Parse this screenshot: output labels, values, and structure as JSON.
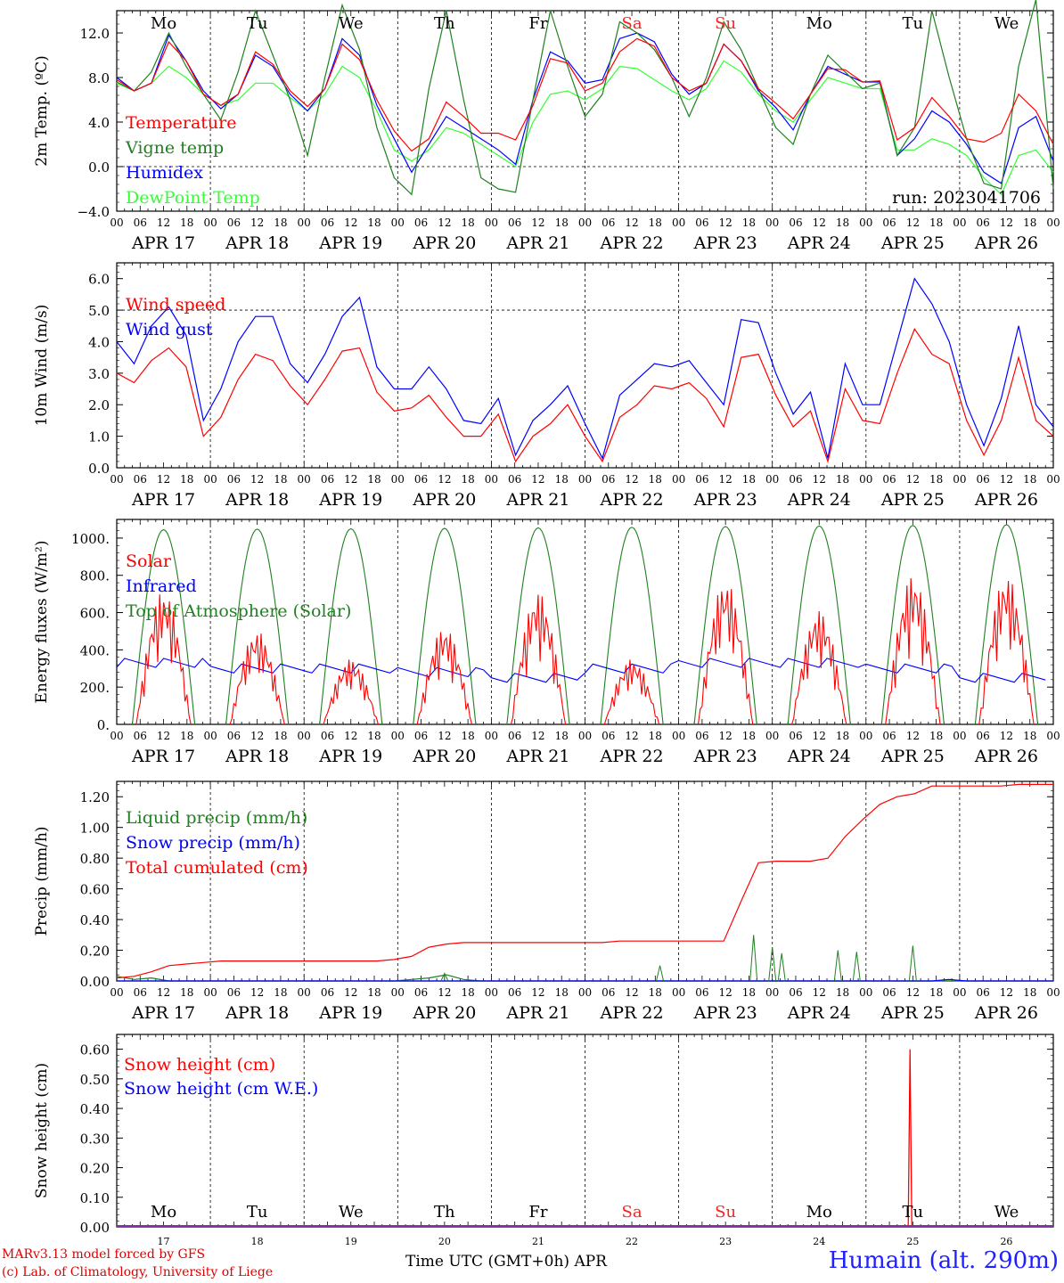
{
  "days": [
    "APR 17",
    "APR 18",
    "APR 19",
    "APR 20",
    "APR 21",
    "APR 22",
    "APR 23",
    "APR 24",
    "APR 25",
    "APR 26"
  ],
  "weekdays": [
    "Mo",
    "Tu",
    "We",
    "Th",
    "Fr",
    "Sa",
    "Su",
    "Mo",
    "Tu",
    "We"
  ],
  "weekend_color": "#ff2020",
  "hour_ticks": [
    "00",
    "06",
    "12",
    "18"
  ],
  "end_tick": "00",
  "snow_day_numbers": [
    "17",
    "18",
    "19",
    "20",
    "21",
    "22",
    "23",
    "24",
    "25",
    "26"
  ],
  "footer": {
    "model": "MARv3.13 model forced by GFS",
    "lab": "(c) Lab. of Climatology, University of Liege",
    "time_label": "Time UTC (GMT+0h) APR",
    "station": "Humain (alt. 290m)"
  },
  "chart_data": [
    {
      "id": "temp",
      "type": "line",
      "ylabel": "2m Temp. (ºC)",
      "ylim": [
        -4,
        14
      ],
      "yticks": [
        "−4.0",
        "0.0",
        "4.0",
        "8.0",
        "12.0"
      ],
      "ytick_values": [
        -4,
        0,
        4,
        8,
        12
      ],
      "dashed_hline": 0,
      "run_label": "run: 2023041706",
      "series": [
        {
          "name": "Temperature",
          "color": "#ff0000",
          "values": [
            7.8,
            6.8,
            7.5,
            11.2,
            9.5,
            6.5,
            5.5,
            6.5,
            10.3,
            9.2,
            6.8,
            5.4,
            7.0,
            11.0,
            9.6,
            6.0,
            3.2,
            1.4,
            2.5,
            5.8,
            4.5,
            3.0,
            3.0,
            2.4,
            5.5,
            9.7,
            9.3,
            6.8,
            7.5,
            10.3,
            11.5,
            10.8,
            8.0,
            6.8,
            7.5,
            11.0,
            9.5,
            7.0,
            5.7,
            4.3,
            6.5,
            8.8,
            8.7,
            7.6,
            7.7,
            2.4,
            3.5,
            6.2,
            4.5,
            2.5,
            2.2,
            3.0,
            6.5,
            5.0,
            2.0
          ]
        },
        {
          "name": "Vigne temp",
          "color": "#208020",
          "values": [
            7.6,
            6.8,
            8.5,
            12.0,
            9.0,
            6.5,
            4.2,
            8.5,
            14.0,
            10.0,
            6.0,
            1.0,
            8.0,
            14.5,
            10.5,
            3.5,
            -1.0,
            -2.5,
            7.0,
            14.0,
            6.0,
            -1.0,
            -2.0,
            -2.3,
            6.0,
            14.0,
            9.0,
            4.5,
            6.5,
            13.0,
            12.0,
            10.5,
            8.0,
            4.5,
            8.0,
            13.0,
            10.5,
            7.0,
            3.5,
            2.0,
            6.5,
            10.0,
            8.5,
            7.0,
            7.5,
            1.0,
            3.5,
            14.0,
            8.0,
            2.5,
            -1.5,
            -2.0,
            9.0,
            15.0,
            -2.0
          ]
        },
        {
          "name": "Humidex",
          "color": "#0000ff",
          "values": [
            8.0,
            6.8,
            7.5,
            11.8,
            9.5,
            6.8,
            5.2,
            6.5,
            10.0,
            9.0,
            6.5,
            5.0,
            7.0,
            11.5,
            10.0,
            5.5,
            2.5,
            -0.5,
            2.0,
            4.5,
            3.5,
            2.5,
            1.5,
            0.2,
            6.0,
            10.3,
            9.5,
            7.5,
            7.8,
            11.5,
            12.0,
            11.2,
            8.3,
            6.5,
            7.5,
            11.0,
            9.5,
            6.8,
            5.3,
            3.3,
            6.5,
            9.0,
            8.3,
            7.6,
            7.6,
            1.0,
            2.5,
            5.0,
            4.0,
            2.0,
            -0.5,
            -1.5,
            3.5,
            4.5,
            0.5
          ]
        },
        {
          "name": "DewPoint Temp",
          "color": "#33ff33",
          "values": [
            7.5,
            6.8,
            7.5,
            9.0,
            8.0,
            6.5,
            5.5,
            6.0,
            7.5,
            7.5,
            6.2,
            5.0,
            6.5,
            9.0,
            8.0,
            5.0,
            1.5,
            0.5,
            1.5,
            3.5,
            3.0,
            2.0,
            1.0,
            0.0,
            4.0,
            6.5,
            6.8,
            6.0,
            7.0,
            9.0,
            8.8,
            7.8,
            6.8,
            6.0,
            7.0,
            9.5,
            8.5,
            6.5,
            5.0,
            4.0,
            6.0,
            8.0,
            7.5,
            7.0,
            7.0,
            1.5,
            1.5,
            2.5,
            2.0,
            1.0,
            -1.0,
            -2.5,
            1.0,
            1.5,
            -0.5
          ]
        }
      ]
    },
    {
      "id": "wind",
      "type": "line",
      "ylabel": "10m Wind (m/s)",
      "ylim": [
        0,
        6.5
      ],
      "yticks": [
        "0.0",
        "1.0",
        "2.0",
        "3.0",
        "4.0",
        "5.0",
        "6.0"
      ],
      "ytick_values": [
        0,
        1,
        2,
        3,
        4,
        5,
        6
      ],
      "dashed_hline": 5,
      "series": [
        {
          "name": "Wind speed",
          "color": "#ff0000",
          "values": [
            3.0,
            2.7,
            3.4,
            3.8,
            3.2,
            1.0,
            1.6,
            2.8,
            3.6,
            3.4,
            2.6,
            2.0,
            2.8,
            3.7,
            3.8,
            2.4,
            1.8,
            1.9,
            2.3,
            1.6,
            1.0,
            1.0,
            1.7,
            0.2,
            1.0,
            1.4,
            2.0,
            1.0,
            0.2,
            1.6,
            2.0,
            2.6,
            2.5,
            2.7,
            2.2,
            1.3,
            3.5,
            3.6,
            2.3,
            1.3,
            1.8,
            0.2,
            2.5,
            1.5,
            1.4,
            3.0,
            4.4,
            3.6,
            3.3,
            1.5,
            0.4,
            1.5,
            3.5,
            1.5,
            1.0
          ]
        },
        {
          "name": "Wind gust",
          "color": "#0000ff",
          "values": [
            4.0,
            3.3,
            4.5,
            5.1,
            4.2,
            1.5,
            2.5,
            4.0,
            4.8,
            4.8,
            3.3,
            2.7,
            3.6,
            4.8,
            5.4,
            3.2,
            2.5,
            2.5,
            3.2,
            2.5,
            1.5,
            1.4,
            2.2,
            0.4,
            1.5,
            2.0,
            2.6,
            1.4,
            0.3,
            2.3,
            2.8,
            3.3,
            3.2,
            3.4,
            2.7,
            2.0,
            4.7,
            4.6,
            3.0,
            1.7,
            2.4,
            0.3,
            3.3,
            2.0,
            2.0,
            4.0,
            6.0,
            5.2,
            4.0,
            2.0,
            0.7,
            2.2,
            4.5,
            2.0,
            1.3
          ]
        }
      ]
    },
    {
      "id": "flux",
      "type": "line",
      "ylabel": "Energy fluxes (W/m²)",
      "ylim": [
        0,
        1100
      ],
      "yticks": [
        "0.",
        "200.",
        "400.",
        "600.",
        "800.",
        "1000."
      ],
      "ytick_values": [
        0,
        200,
        400,
        600,
        800,
        1000
      ],
      "series": [
        {
          "name": "Solar",
          "color": "#ff0000",
          "daily_peak": [
            720,
            500,
            350,
            520,
            710,
            350,
            770,
            610,
            800,
            800
          ]
        },
        {
          "name": "Infrared",
          "color": "#0000ff",
          "daily_mean": [
            330,
            300,
            300,
            280,
            250,
            300,
            330,
            330,
            300,
            250
          ]
        },
        {
          "name": "Top of Atmosphere (Solar)",
          "color": "#208020",
          "daily_peak": [
            1045,
            1048,
            1050,
            1052,
            1055,
            1058,
            1062,
            1065,
            1068,
            1072
          ]
        }
      ]
    },
    {
      "id": "precip",
      "type": "line",
      "ylabel": "Precip (mm/h)",
      "ylim": [
        0,
        1.3
      ],
      "yticks": [
        "0.00",
        "0.20",
        "0.40",
        "0.60",
        "0.80",
        "1.00",
        "1.20"
      ],
      "ytick_values": [
        0,
        0.2,
        0.4,
        0.6,
        0.8,
        1.0,
        1.2
      ],
      "series": [
        {
          "name": "Liquid precip (mm/h)",
          "color": "#208020",
          "values": [
            0.03,
            0.01,
            0.02,
            0.0,
            0.0,
            0.0,
            0.0,
            0.0,
            0.0,
            0.0,
            0.0,
            0.0,
            0.0,
            0.0,
            0.0,
            0.0,
            0.0,
            0.01,
            0.02,
            0.04,
            0.01,
            0.0,
            0.0,
            0.0,
            0.0,
            0.0,
            0.0,
            0.0,
            0.0,
            0.0,
            0.0,
            0.0,
            0.0,
            0.0,
            0.0,
            0.0,
            0.0,
            0.0,
            0.0,
            0.0,
            0.0,
            0.0,
            0.0,
            0.0,
            0.0,
            0.0,
            0.0,
            0.0,
            0.0,
            0.0,
            0.0,
            0.0,
            0.0,
            0.0,
            0.0
          ]
        },
        {
          "name": "Snow precip (mm/h)",
          "color": "#0000ff",
          "values": [
            0.0,
            0.0,
            0.0,
            0.0,
            0.0,
            0.0,
            0.0,
            0.0,
            0.0,
            0.0,
            0.0,
            0.0,
            0.0,
            0.0,
            0.0,
            0.0,
            0.0,
            0.0,
            0.0,
            0.0,
            0.0,
            0.0,
            0.0,
            0.0,
            0.0,
            0.0,
            0.0,
            0.0,
            0.0,
            0.0,
            0.0,
            0.0,
            0.0,
            0.0,
            0.0,
            0.0,
            0.0,
            0.0,
            0.0,
            0.0,
            0.0,
            0.0,
            0.0,
            0.0,
            0.0,
            0.0,
            0.0,
            0.0,
            0.01,
            0.0,
            0.0,
            0.0,
            0.0,
            0.0,
            0.0
          ]
        },
        {
          "name": "Total cumulated (cm)",
          "color": "#ff0000",
          "values": [
            0.02,
            0.03,
            0.06,
            0.1,
            0.11,
            0.12,
            0.13,
            0.13,
            0.13,
            0.13,
            0.13,
            0.13,
            0.13,
            0.13,
            0.13,
            0.13,
            0.14,
            0.16,
            0.22,
            0.24,
            0.25,
            0.25,
            0.25,
            0.25,
            0.25,
            0.25,
            0.25,
            0.25,
            0.25,
            0.26,
            0.26,
            0.26,
            0.26,
            0.26,
            0.26,
            0.26,
            0.52,
            0.77,
            0.78,
            0.78,
            0.78,
            0.8,
            0.94,
            1.05,
            1.15,
            1.2,
            1.22,
            1.27,
            1.27,
            1.27,
            1.27,
            1.27,
            1.28,
            1.28,
            1.28
          ]
        }
      ],
      "liquid_spikes": [
        [
          6.8,
          0.3
        ],
        [
          7.0,
          0.22
        ],
        [
          7.1,
          0.18
        ],
        [
          7.7,
          0.2
        ],
        [
          7.9,
          0.19
        ],
        [
          8.5,
          0.23
        ],
        [
          5.8,
          0.1
        ],
        [
          3.5,
          0.05
        ]
      ]
    },
    {
      "id": "snow",
      "type": "line",
      "ylabel": "Snow height (cm)",
      "ylim": [
        0,
        0.65
      ],
      "yticks": [
        "0.00",
        "0.10",
        "0.20",
        "0.30",
        "0.40",
        "0.50",
        "0.60"
      ],
      "ytick_values": [
        0,
        0.1,
        0.2,
        0.3,
        0.4,
        0.5,
        0.6
      ],
      "series": [
        {
          "name": "Snow height (cm)",
          "color": "#ff0000",
          "spike": [
            8.47,
            0.6
          ]
        },
        {
          "name": "Snow height (cm W.E.)",
          "color": "#0000ff"
        }
      ]
    }
  ]
}
